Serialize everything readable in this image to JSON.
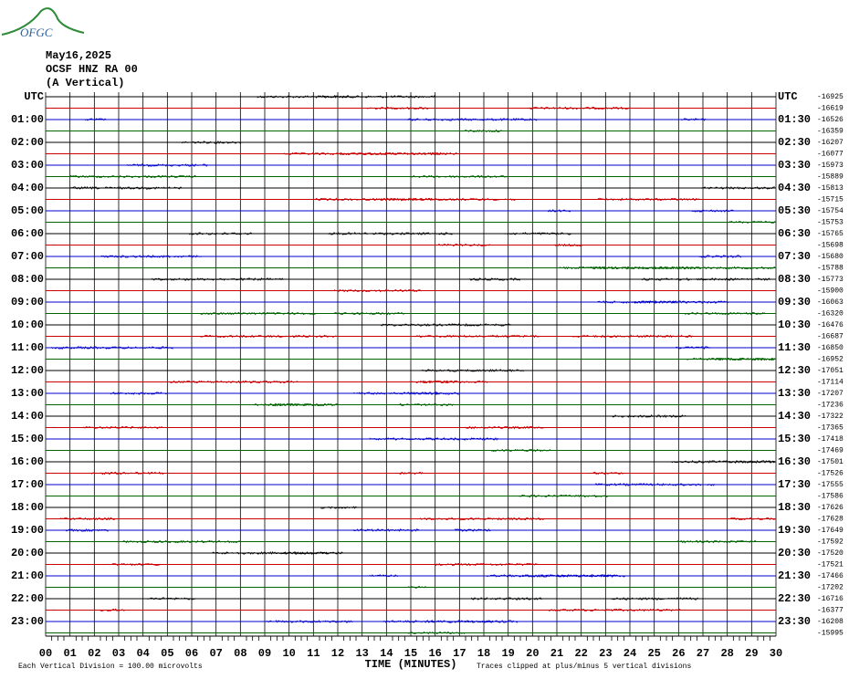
{
  "logo": "OFGC",
  "header": {
    "date": "May16,2025",
    "station": "OCSF HNZ RA 00",
    "component": "(A Vertical)"
  },
  "trace_colors": [
    "#000000",
    "#cc0000",
    "#0000cc",
    "#006600"
  ],
  "rows": [
    {
      "left": "UTC",
      "right": "UTC",
      "offset": "-16925"
    },
    {
      "offset": "-16619"
    },
    {
      "left": "01:00",
      "right": "01:30",
      "offset": "-16526"
    },
    {
      "offset": "-16359"
    },
    {
      "left": "02:00",
      "right": "02:30",
      "offset": "-16207"
    },
    {
      "offset": "-16077"
    },
    {
      "left": "03:00",
      "right": "03:30",
      "offset": "-15973"
    },
    {
      "offset": "-15889"
    },
    {
      "left": "04:00",
      "right": "04:30",
      "offset": "-15813"
    },
    {
      "offset": "-15715"
    },
    {
      "left": "05:00",
      "right": "05:30",
      "offset": "-15754"
    },
    {
      "offset": "-15753"
    },
    {
      "left": "06:00",
      "right": "06:30",
      "offset": "-15765"
    },
    {
      "offset": "-15698"
    },
    {
      "left": "07:00",
      "right": "07:30",
      "offset": "-15680"
    },
    {
      "offset": "-15788"
    },
    {
      "left": "08:00",
      "right": "08:30",
      "offset": "-15773"
    },
    {
      "offset": "-15900"
    },
    {
      "left": "09:00",
      "right": "09:30",
      "offset": "-16063"
    },
    {
      "offset": "-16320"
    },
    {
      "left": "10:00",
      "right": "10:30",
      "offset": "-16476"
    },
    {
      "offset": "-16687"
    },
    {
      "left": "11:00",
      "right": "11:30",
      "offset": "-16850"
    },
    {
      "offset": "-16952"
    },
    {
      "left": "12:00",
      "right": "12:30",
      "offset": "-17051"
    },
    {
      "offset": "-17114"
    },
    {
      "left": "13:00",
      "right": "13:30",
      "offset": "-17207"
    },
    {
      "offset": "-17236"
    },
    {
      "left": "14:00",
      "right": "14:30",
      "offset": "-17322"
    },
    {
      "offset": "-17365"
    },
    {
      "left": "15:00",
      "right": "15:30",
      "offset": "-17418"
    },
    {
      "offset": "-17469"
    },
    {
      "left": "16:00",
      "right": "16:30",
      "offset": "-17501"
    },
    {
      "offset": "-17526"
    },
    {
      "left": "17:00",
      "right": "17:30",
      "offset": "-17555"
    },
    {
      "offset": "-17586"
    },
    {
      "left": "18:00",
      "right": "18:30",
      "offset": "-17626"
    },
    {
      "offset": "-17628"
    },
    {
      "left": "19:00",
      "right": "19:30",
      "offset": "-17649"
    },
    {
      "offset": "-17592"
    },
    {
      "left": "20:00",
      "right": "20:30",
      "offset": "-17520"
    },
    {
      "offset": "-17521"
    },
    {
      "left": "21:00",
      "right": "21:30",
      "offset": "-17466"
    },
    {
      "offset": "-17202"
    },
    {
      "left": "22:00",
      "right": "22:30",
      "offset": "-16716"
    },
    {
      "offset": "-16377"
    },
    {
      "left": "23:00",
      "right": "23:30",
      "offset": "-16208"
    },
    {
      "offset": "-15995"
    }
  ],
  "minutes": [
    "00",
    "01",
    "02",
    "03",
    "04",
    "05",
    "06",
    "07",
    "08",
    "09",
    "10",
    "11",
    "12",
    "13",
    "14",
    "15",
    "16",
    "17",
    "18",
    "19",
    "20",
    "21",
    "22",
    "23",
    "24",
    "25",
    "26",
    "27",
    "28",
    "29",
    "30"
  ],
  "x_axis_label": "TIME (MINUTES)",
  "footer": {
    "scale": "Each Vertical Division =  100.00 microvolts",
    "clip": "Traces clipped at plus/minus 5 vertical divisions"
  }
}
